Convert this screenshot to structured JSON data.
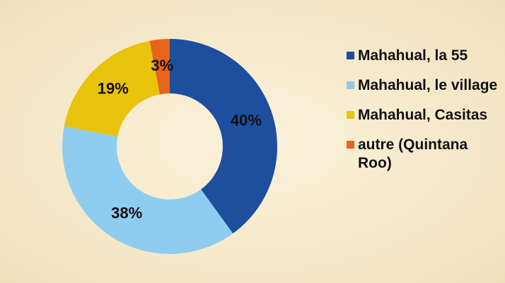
{
  "chart_data": {
    "type": "donut",
    "categories": [
      "Mahahual, la 55",
      "Mahahual, le village",
      "Mahahual, Casitas",
      "autre (Quintana Roo)"
    ],
    "values": [
      40,
      38,
      19,
      3
    ],
    "value_labels": [
      "40%",
      "38%",
      "19%",
      "3%"
    ],
    "colors": [
      "#1d4f9e",
      "#8fcdf0",
      "#e8c30c",
      "#e8641b"
    ],
    "legend": "right"
  }
}
